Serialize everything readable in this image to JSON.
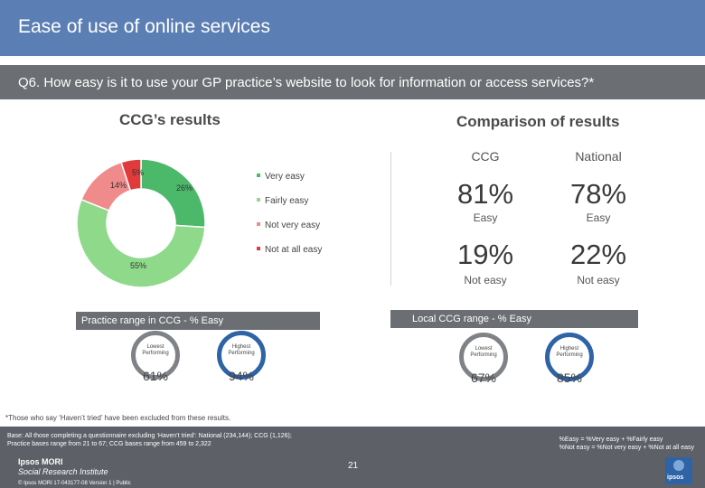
{
  "header": {
    "title": "Ease of use of online services"
  },
  "question": "Q6. How easy is it to use your GP practice’s website to look for information or access services?*",
  "left_heading": "CCG’s results",
  "right_heading": "Comparison of results",
  "chart_data": {
    "type": "pie",
    "variant": "donut",
    "categories": [
      "Very easy",
      "Fairly easy",
      "Not very easy",
      "Not at all easy"
    ],
    "values": [
      26,
      55,
      14,
      5
    ],
    "labels": [
      "26%",
      "55%",
      "14%",
      "5%"
    ],
    "colors": [
      "#4bb86a",
      "#8fd98b",
      "#f08b8b",
      "#e03a3a"
    ]
  },
  "comparison": {
    "columns": [
      "CCG",
      "National"
    ],
    "easy": [
      "81%",
      "78%"
    ],
    "easy_label": "Easy",
    "not_easy": [
      "19%",
      "22%"
    ],
    "not_easy_label": "Not easy"
  },
  "practice_range": {
    "label": "Practice range in CCG - % Easy",
    "lowest_label": "Lowest Performing",
    "highest_label": "Highest Performing",
    "lowest_value": "61%",
    "highest_value": "94%"
  },
  "local_range": {
    "label": "Local CCG range - % Easy",
    "lowest_label": "Lowest Performing",
    "highest_label": "Highest Performing",
    "lowest_value": "67%",
    "highest_value": "85%"
  },
  "footnote": "*Those who say ‘Haven’t tried’ have been excluded from these results.",
  "footer": {
    "base_line1": "Base: All those completing a questionnaire excluding ‘Haven’t tried’: National (234,144); CCG (1,126);",
    "base_line2": "Practice bases range from 21 to 67; CCG bases range from 459 to 2,322",
    "def_line1": "%Easy = %Very easy + %Fairly easy",
    "def_line2": "%Not easy = %Not very easy + %Not at all easy",
    "brand": "Ipsos MORI",
    "brand_sub": "Social Research Institute",
    "copyright": "© Ipsos MORI     17-043177-08 Version 1 | Public",
    "page": "21",
    "logo_text": "ipsos"
  }
}
